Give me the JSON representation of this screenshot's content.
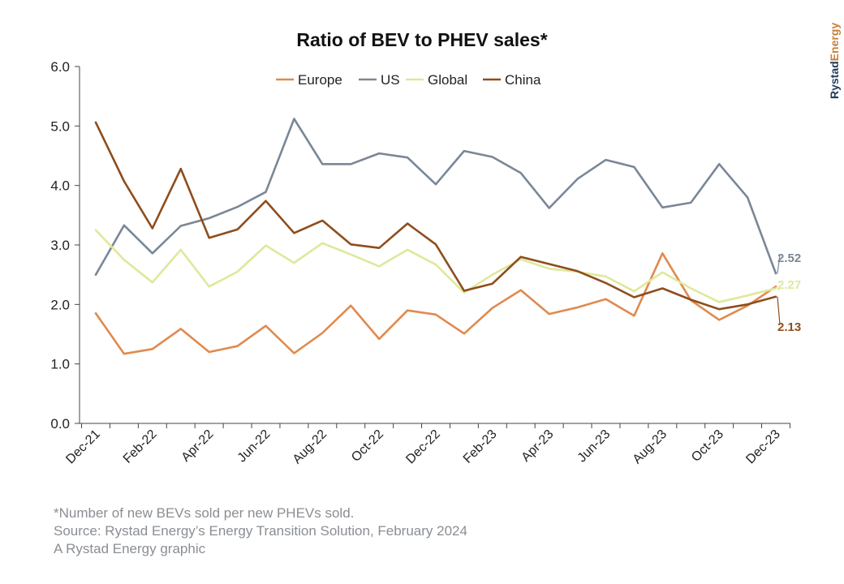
{
  "brand": {
    "name_part1": "Rystad",
    "name_part2": "Energy",
    "color1": "#1f3c5a",
    "color2": "#c8803e"
  },
  "footnote": {
    "line1": "*Number of new BEVs sold per new PHEVs sold.",
    "line2": "Source: Rystad Energy’s Energy Transition Solution, February 2024",
    "line3": "A Rystad Energy graphic"
  },
  "chart_data": {
    "type": "line",
    "title": "Ratio of BEV to PHEV sales*",
    "xlabel": "",
    "ylabel": "",
    "ylim": [
      0,
      6
    ],
    "y_ticks": [
      "0.0",
      "1.0",
      "2.0",
      "3.0",
      "4.0",
      "5.0",
      "6.0"
    ],
    "grid": false,
    "legend_position": "top-center",
    "x": [
      "Dec-21",
      "Jan-22",
      "Feb-22",
      "Mar-22",
      "Apr-22",
      "May-22",
      "Jun-22",
      "Jul-22",
      "Aug-22",
      "Sep-22",
      "Oct-22",
      "Nov-22",
      "Dec-22",
      "Jan-23",
      "Feb-23",
      "Mar-23",
      "Apr-23",
      "May-23",
      "Jun-23",
      "Jul-23",
      "Aug-23",
      "Sep-23",
      "Oct-23",
      "Nov-23",
      "Dec-23"
    ],
    "x_tick_labels": [
      "Dec-21",
      "Feb-22",
      "Apr-22",
      "Jun-22",
      "Aug-22",
      "Oct-22",
      "Dec-22",
      "Feb-23",
      "Apr-23",
      "Jun-23",
      "Aug-23",
      "Oct-23",
      "Dec-23"
    ],
    "series": [
      {
        "name": "Europe",
        "color": "#e08a4e",
        "values": [
          1.85,
          1.17,
          1.25,
          1.59,
          1.2,
          1.3,
          1.64,
          1.18,
          1.52,
          1.98,
          1.42,
          1.9,
          1.83,
          1.51,
          1.94,
          2.24,
          1.84,
          1.95,
          2.09,
          1.81,
          2.86,
          2.07,
          1.74,
          1.98,
          2.3
        ]
      },
      {
        "name": "US",
        "color": "#7a8796",
        "values": [
          2.5,
          3.33,
          2.86,
          3.32,
          3.45,
          3.64,
          3.89,
          5.12,
          4.36,
          4.36,
          4.54,
          4.47,
          4.02,
          4.58,
          4.48,
          4.21,
          3.62,
          4.11,
          4.43,
          4.31,
          3.63,
          3.71,
          4.36,
          3.8,
          2.52
        ]
      },
      {
        "name": "Global",
        "color": "#dfe89a",
        "values": [
          3.25,
          2.75,
          2.37,
          2.92,
          2.3,
          2.55,
          2.99,
          2.7,
          3.03,
          2.84,
          2.64,
          2.92,
          2.67,
          2.2,
          2.5,
          2.76,
          2.6,
          2.55,
          2.47,
          2.22,
          2.54,
          2.27,
          2.04,
          2.15,
          2.27
        ]
      },
      {
        "name": "China",
        "color": "#8e4d1d",
        "values": [
          5.06,
          4.07,
          3.28,
          4.28,
          3.12,
          3.26,
          3.74,
          3.2,
          3.41,
          3.01,
          2.95,
          3.36,
          3.01,
          2.23,
          2.35,
          2.8,
          2.68,
          2.56,
          2.36,
          2.12,
          2.27,
          2.08,
          1.92,
          2.0,
          2.13
        ]
      }
    ],
    "end_labels": [
      {
        "series": "US",
        "text": "2.52",
        "color": "#7a8796"
      },
      {
        "series": "Global",
        "text": "2.27",
        "color": "#dfe89a"
      },
      {
        "series": "China",
        "text": "2.13",
        "color": "#8e4d1d"
      }
    ]
  }
}
